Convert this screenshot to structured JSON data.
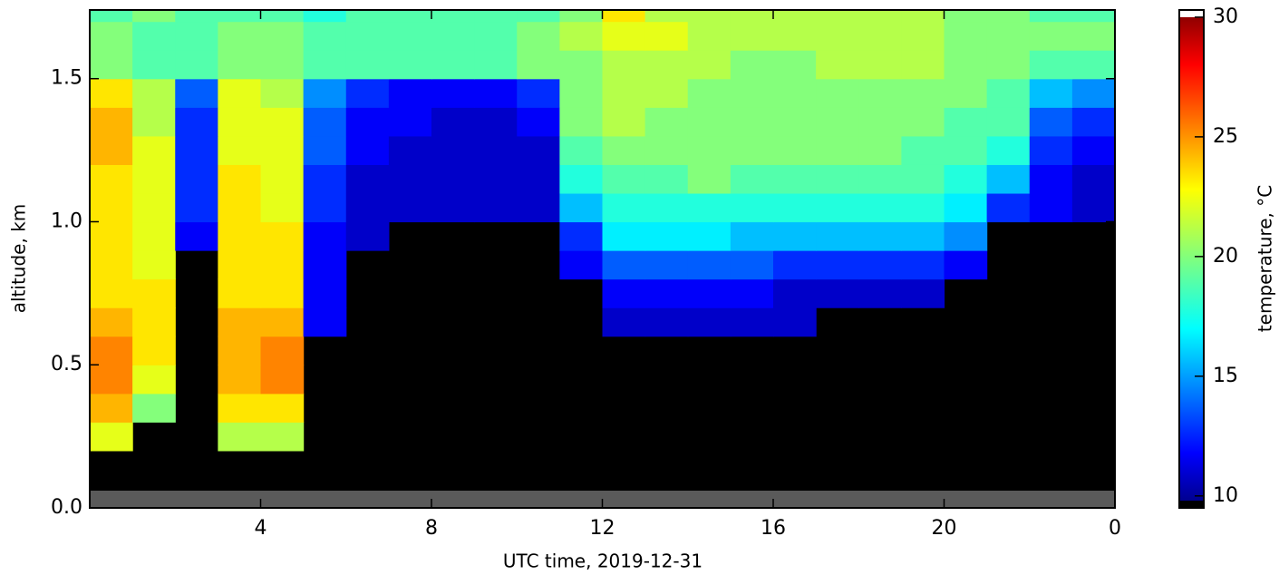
{
  "chart_data": {
    "type": "heatmap",
    "xlabel": "UTC time,  2019-12-31",
    "ylabel": "altitude, km",
    "colorbar_label": "temperature, °C",
    "colormap": "jet",
    "x": [
      0,
      1,
      2,
      3,
      4,
      5,
      6,
      7,
      8,
      9,
      10,
      11,
      12,
      13,
      14,
      15,
      16,
      17,
      18,
      19,
      20,
      21,
      22,
      23,
      24
    ],
    "y": [
      0,
      0.1,
      0.2,
      0.3,
      0.4,
      0.5,
      0.6,
      0.7,
      0.8,
      0.9,
      1.0,
      1.1,
      1.2,
      1.3,
      1.4,
      1.5,
      1.6,
      1.7,
      1.74
    ],
    "values": [
      [
        null,
        null,
        null,
        null,
        null,
        null,
        null,
        null,
        null,
        null,
        null,
        null,
        null,
        null,
        null,
        null,
        null,
        null,
        null,
        null,
        null,
        null,
        null,
        null
      ],
      [
        null,
        null,
        null,
        null,
        null,
        null,
        null,
        null,
        null,
        null,
        null,
        null,
        null,
        null,
        null,
        null,
        null,
        null,
        null,
        null,
        null,
        null,
        null,
        null
      ],
      [
        22,
        null,
        null,
        21,
        21,
        null,
        null,
        null,
        null,
        null,
        null,
        null,
        null,
        null,
        null,
        null,
        null,
        null,
        null,
        null,
        null,
        null,
        null,
        null
      ],
      [
        24,
        20,
        null,
        23,
        23,
        null,
        null,
        null,
        null,
        null,
        null,
        null,
        null,
        null,
        null,
        null,
        null,
        null,
        null,
        null,
        null,
        null,
        null,
        null
      ],
      [
        25,
        22,
        null,
        24,
        25,
        null,
        null,
        null,
        null,
        null,
        null,
        null,
        null,
        null,
        null,
        null,
        null,
        null,
        null,
        null,
        null,
        null,
        null,
        null
      ],
      [
        25,
        23,
        null,
        24,
        25,
        null,
        null,
        null,
        null,
        null,
        null,
        null,
        null,
        null,
        null,
        null,
        null,
        null,
        null,
        null,
        null,
        null,
        null,
        null
      ],
      [
        24,
        23,
        null,
        24,
        24,
        12,
        null,
        null,
        null,
        null,
        null,
        null,
        11,
        11,
        11,
        11,
        11,
        null,
        null,
        null,
        null,
        null,
        null,
        null
      ],
      [
        23,
        23,
        null,
        23,
        23,
        12,
        null,
        null,
        null,
        null,
        null,
        null,
        12,
        12,
        12,
        12,
        11,
        11,
        11,
        11,
        null,
        null,
        null,
        null
      ],
      [
        23,
        22,
        null,
        23,
        23,
        12,
        null,
        null,
        null,
        null,
        null,
        12,
        14,
        14,
        14,
        14,
        13,
        13,
        13,
        13,
        12,
        null,
        null,
        null
      ],
      [
        23,
        22,
        12,
        23,
        23,
        12,
        11,
        null,
        null,
        null,
        null,
        13,
        17,
        17,
        17,
        16,
        16,
        16,
        16,
        16,
        15,
        null,
        null,
        null
      ],
      [
        23,
        22,
        13,
        23,
        22,
        13,
        11,
        11,
        11,
        11,
        11,
        16,
        18,
        18,
        18,
        18,
        18,
        18,
        18,
        18,
        17,
        13,
        12,
        11
      ],
      [
        23,
        22,
        13,
        23,
        22,
        13,
        11,
        11,
        11,
        11,
        11,
        18,
        19,
        19,
        20,
        19,
        19,
        19,
        19,
        19,
        18,
        16,
        12,
        11
      ],
      [
        24,
        22,
        13,
        22,
        22,
        14,
        12,
        11,
        11,
        11,
        11,
        19,
        20,
        20,
        20,
        20,
        20,
        20,
        20,
        19,
        19,
        18,
        13,
        12
      ],
      [
        24,
        21,
        13,
        22,
        22,
        14,
        12,
        12,
        11,
        11,
        12,
        20,
        21,
        20,
        20,
        20,
        20,
        20,
        20,
        20,
        19,
        19,
        14,
        13
      ],
      [
        23,
        21,
        14,
        22,
        21,
        15,
        13,
        12,
        12,
        12,
        13,
        20,
        21,
        21,
        20,
        20,
        20,
        20,
        20,
        20,
        20,
        19,
        16,
        15
      ],
      [
        20,
        19,
        19,
        20,
        20,
        19,
        19,
        19,
        19,
        19,
        20,
        20,
        21,
        21,
        21,
        20,
        20,
        21,
        21,
        21,
        20,
        20,
        19,
        19
      ],
      [
        20,
        19,
        19,
        20,
        20,
        19,
        19,
        19,
        19,
        19,
        20,
        21,
        22,
        22,
        21,
        21,
        21,
        21,
        21,
        21,
        20,
        20,
        20,
        20
      ],
      [
        19,
        20,
        19,
        19,
        19,
        18,
        19,
        19,
        19,
        19,
        19,
        20,
        23,
        21,
        21,
        21,
        21,
        21,
        21,
        21,
        20,
        20,
        19,
        19
      ]
    ],
    "xlim": [
      0,
      24
    ],
    "xticks": [
      4,
      8,
      12,
      16,
      20,
      {
        "value": 24,
        "label": "0"
      }
    ],
    "ylim": [
      0,
      1.74
    ],
    "yticks": [
      {
        "value": 0,
        "label": "0.0"
      },
      0.5,
      {
        "value": 1,
        "label": "1.0"
      },
      1.5
    ],
    "clim": [
      9.5,
      30.3
    ],
    "cticks": [
      10,
      15,
      20,
      25,
      30
    ]
  }
}
